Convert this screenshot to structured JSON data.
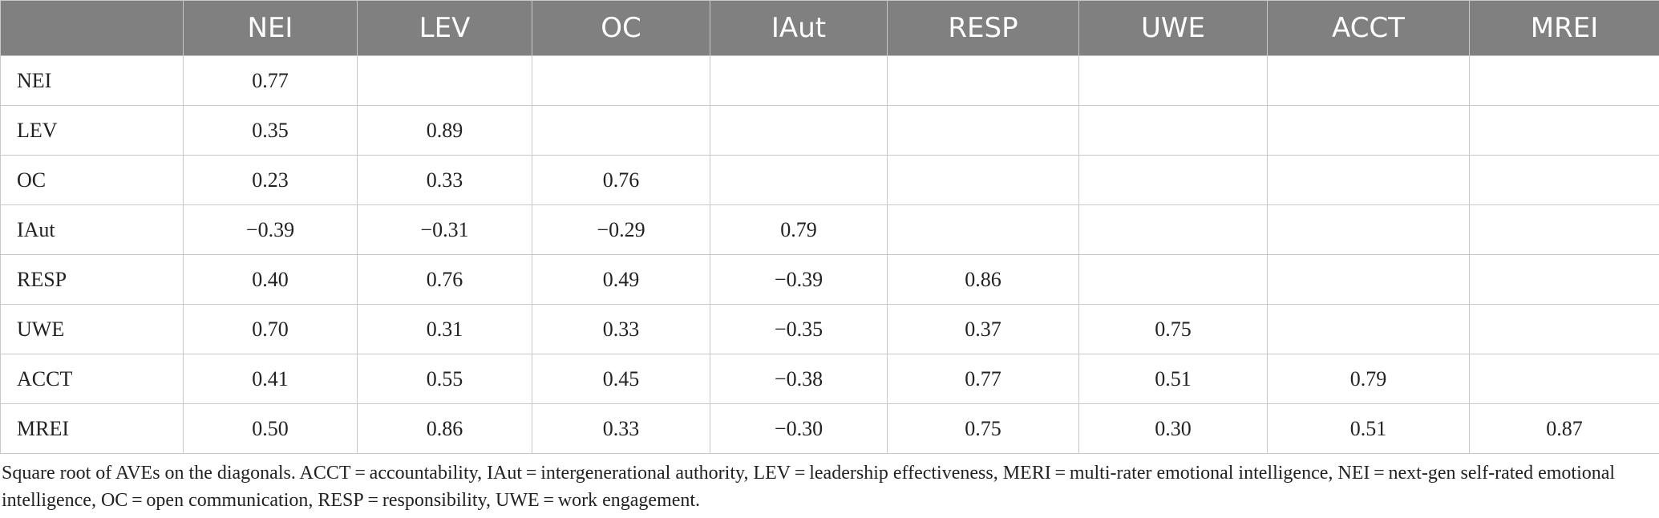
{
  "table": {
    "columns": [
      "",
      "NEI",
      "LEV",
      "OC",
      "IAut",
      "RESP",
      "UWE",
      "ACCT",
      "MREI"
    ],
    "rows": [
      {
        "label": "NEI",
        "values": [
          "0.77",
          "",
          "",
          "",
          "",
          "",
          "",
          ""
        ]
      },
      {
        "label": "LEV",
        "values": [
          "0.35",
          "0.89",
          "",
          "",
          "",
          "",
          "",
          ""
        ]
      },
      {
        "label": "OC",
        "values": [
          "0.23",
          "0.33",
          "0.76",
          "",
          "",
          "",
          "",
          ""
        ]
      },
      {
        "label": "IAut",
        "values": [
          "−0.39",
          "−0.31",
          "−0.29",
          "0.79",
          "",
          "",
          "",
          ""
        ]
      },
      {
        "label": "RESP",
        "values": [
          "0.40",
          "0.76",
          "0.49",
          "−0.39",
          "0.86",
          "",
          "",
          ""
        ]
      },
      {
        "label": "UWE",
        "values": [
          "0.70",
          "0.31",
          "0.33",
          "−0.35",
          "0.37",
          "0.75",
          "",
          ""
        ]
      },
      {
        "label": "ACCT",
        "values": [
          "0.41",
          "0.55",
          "0.45",
          "−0.38",
          "0.77",
          "0.51",
          "0.79",
          ""
        ]
      },
      {
        "label": "MREI",
        "values": [
          "0.50",
          "0.86",
          "0.33",
          "−0.30",
          "0.75",
          "0.30",
          "0.51",
          "0.87"
        ]
      }
    ]
  },
  "footnote": "Square root of AVEs on the diagonals. ACCT = accountability, IAut = intergenerational authority, LEV = leadership effectiveness, MERI = multi-rater emotional intelligence, NEI = next-gen self-rated emotional intelligence, OC = open communication, RESP = responsibility, UWE = work engagement.",
  "colors": {
    "header_bg": "#808080",
    "header_text": "#ffffff",
    "grid": "#c8c8c8"
  }
}
